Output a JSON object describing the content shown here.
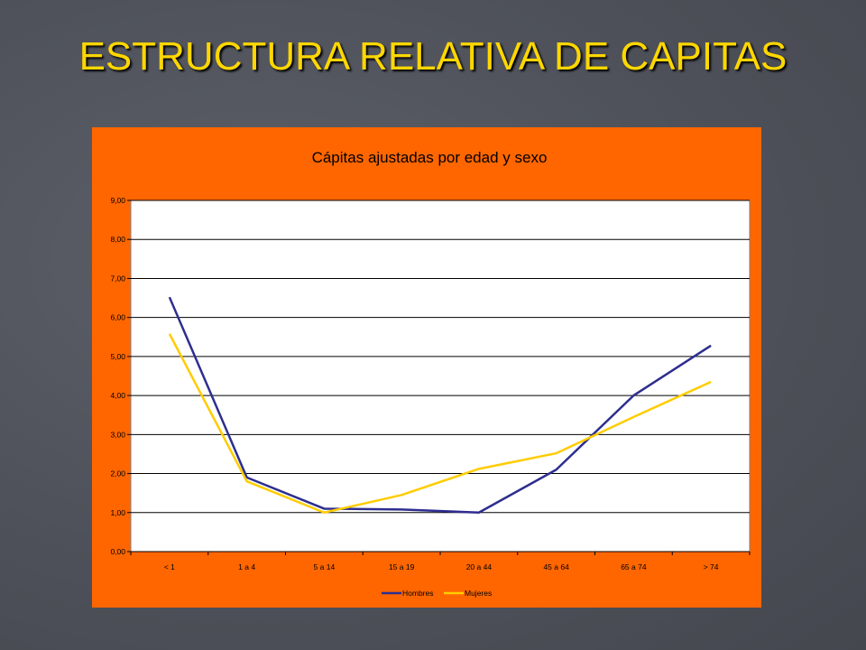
{
  "slide": {
    "title": "ESTRUCTURA RELATIVA DE CAPITAS"
  },
  "colors": {
    "background": "#4e5159",
    "title": "#ffd700",
    "panel": "#ff6600",
    "plot": "#ffffff",
    "hombres": "#2e2e8f",
    "mujeres": "#ffcc00"
  },
  "chart_data": {
    "type": "line",
    "title": "Cápitas ajustadas por edad y sexo",
    "categories": [
      "< 1",
      "1 a 4",
      "5 a 14",
      "15 a 19",
      "20 a 44",
      "45 a 64",
      "65 a 74",
      "> 74"
    ],
    "yticks": [
      "0,00",
      "1,00",
      "2,00",
      "3,00",
      "4,00",
      "5,00",
      "6,00",
      "7,00",
      "8,00",
      "9,00"
    ],
    "ylim": [
      0,
      9
    ],
    "grid": true,
    "legend": "bottom",
    "series": [
      {
        "name": "Hombres",
        "values": [
          6.52,
          1.9,
          1.1,
          1.08,
          1.0,
          2.1,
          4.0,
          5.28
        ]
      },
      {
        "name": "Mujeres",
        "values": [
          5.58,
          1.8,
          1.0,
          1.45,
          2.12,
          2.52,
          3.45,
          4.35
        ]
      }
    ]
  }
}
